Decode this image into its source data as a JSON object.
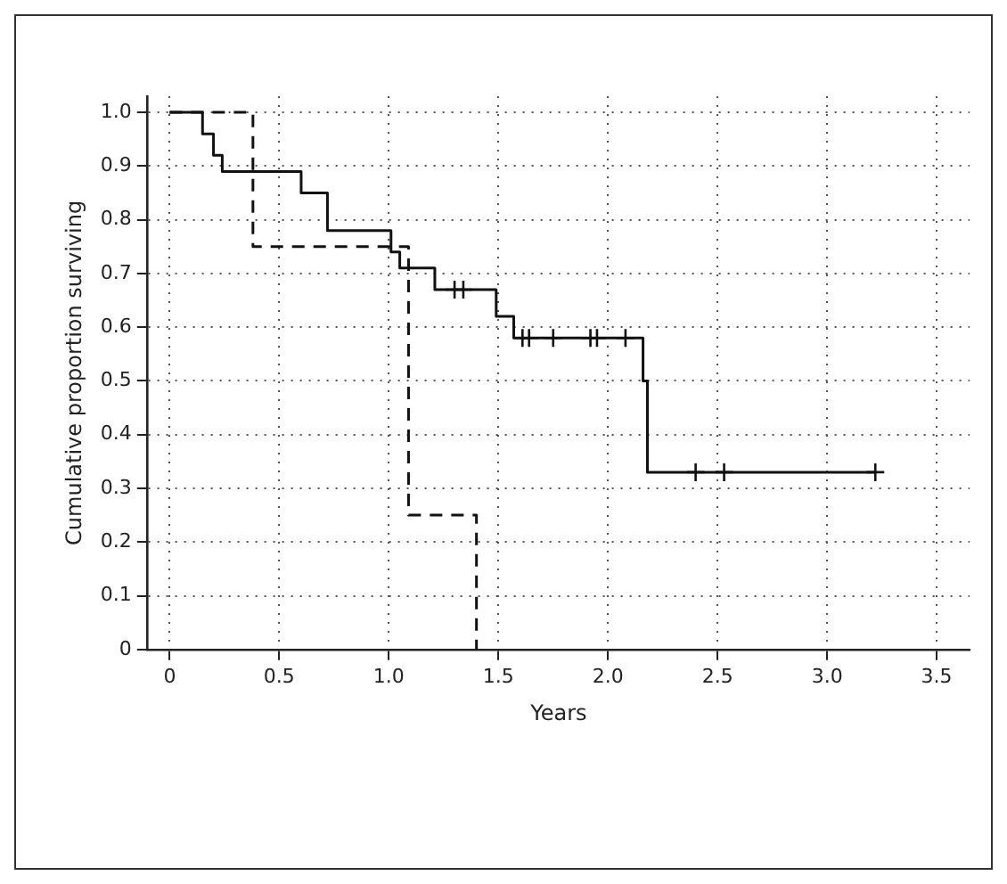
{
  "chart_data": {
    "type": "step",
    "xlabel": "Years",
    "ylabel": "Cumulative proportion surviving",
    "xlim": [
      -0.1,
      3.65
    ],
    "ylim": [
      0,
      1.03
    ],
    "xticks": [
      0,
      0.5,
      {
        "value": 1,
        "label": "1.0"
      },
      1.5,
      {
        "value": 2,
        "label": "2.0"
      },
      2.5,
      {
        "value": 3,
        "label": "3.0"
      },
      3.5
    ],
    "yticks": [
      0,
      0.1,
      0.2,
      0.3,
      0.4,
      0.5,
      0.6,
      0.7,
      0.8,
      0.9,
      {
        "value": 1,
        "label": "1.0"
      }
    ],
    "grid": true,
    "legend": false,
    "series": [
      {
        "type": "step",
        "color": "#111111",
        "line_style": "solid",
        "marker": "none",
        "x": [
          0,
          0.15,
          0.2,
          0.24,
          0.6,
          0.72,
          1.01,
          1.05,
          1.21,
          1.49,
          1.57,
          2.16,
          2.18,
          3.22
        ],
        "values": [
          1,
          0.96,
          0.92,
          0.89,
          0.85,
          0.78,
          0.74,
          0.71,
          0.67,
          0.62,
          0.58,
          0.5,
          0.33,
          0.33
        ]
      },
      {
        "type": "step",
        "color": "#111111",
        "line_style": "dashed",
        "marker": "none",
        "x": [
          0,
          0.38,
          1.09,
          1.4
        ],
        "values": [
          1,
          0.75,
          0.25,
          0
        ]
      },
      {
        "type": "scatter",
        "color": "#111111",
        "marker": "cross",
        "x": [
          1.3,
          1.34,
          1.61,
          1.64,
          1.75,
          1.92,
          1.95,
          2.08,
          2.4,
          2.53,
          3.22
        ],
        "values": [
          0.67,
          0.67,
          0.58,
          0.58,
          0.58,
          0.58,
          0.58,
          0.58,
          0.33,
          0.33,
          0.33
        ]
      }
    ]
  }
}
